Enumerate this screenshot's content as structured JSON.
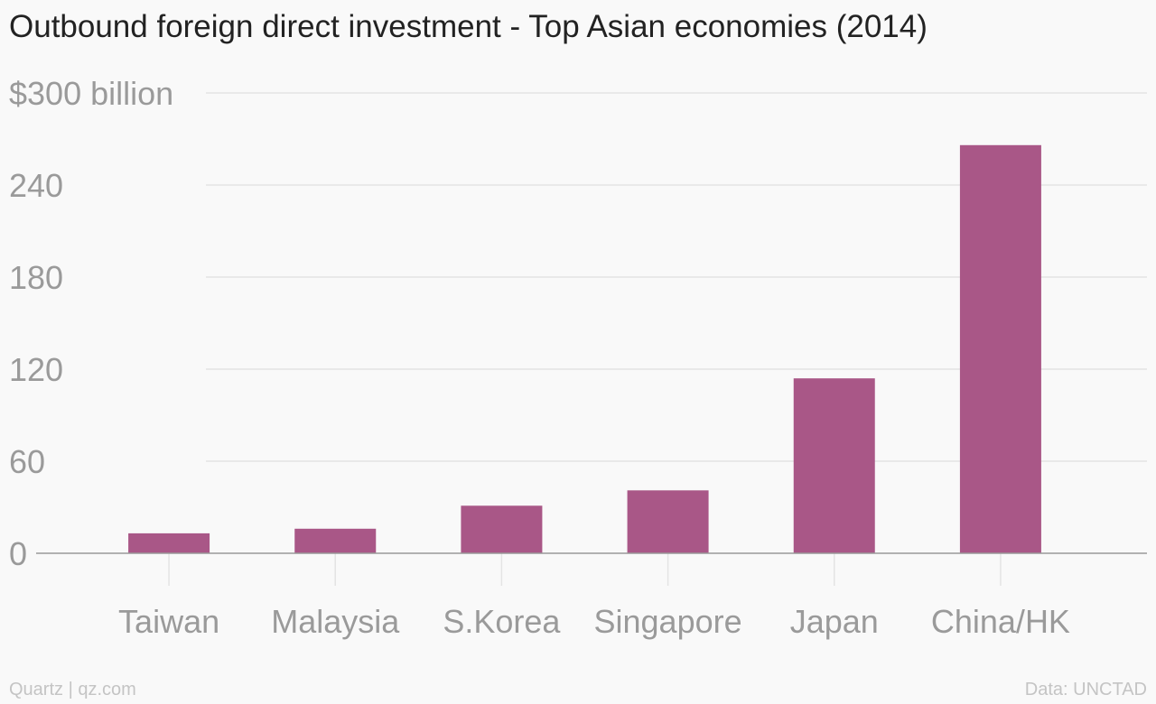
{
  "chart_data": {
    "type": "bar",
    "title": "Outbound foreign direct investment - Top Asian economies (2014)",
    "categories": [
      "Taiwan",
      "Malaysia",
      "S.Korea",
      "Singapore",
      "Japan",
      "China/HK"
    ],
    "values": [
      13,
      16,
      31,
      41,
      114,
      266
    ],
    "ylim": [
      0,
      300
    ],
    "yticks": [
      0,
      60,
      120,
      180,
      240,
      300
    ],
    "ytick_labels": [
      "0",
      "60",
      "120",
      "180",
      "240",
      "$300 billion"
    ],
    "xlabel": "",
    "ylabel": "",
    "grid": true,
    "bar_color": "#a95787"
  },
  "footer": {
    "source": "Quartz | qz.com",
    "credit": "Data: UNCTAD"
  }
}
